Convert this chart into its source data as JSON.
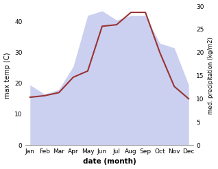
{
  "months": [
    "Jan",
    "Feb",
    "Mar",
    "Apr",
    "May",
    "Jun",
    "Jul",
    "Aug",
    "Sep",
    "Oct",
    "Nov",
    "Dec"
  ],
  "temp": [
    15.5,
    16.0,
    17.0,
    22.0,
    24.0,
    38.5,
    39.0,
    43.0,
    43.0,
    30.0,
    19.0,
    15.0
  ],
  "precip": [
    13,
    11,
    12,
    17,
    28,
    29,
    27,
    28,
    28,
    22,
    21,
    13
  ],
  "temp_color": "#993333",
  "precip_color": "#b0b8e8",
  "precip_alpha": 0.65,
  "xlabel": "date (month)",
  "ylabel_left": "max temp (C)",
  "ylabel_right": "med. precipitation (kg/m2)",
  "ylim_left": [
    0,
    45
  ],
  "ylim_right": [
    0,
    30
  ],
  "yticks_left": [
    0,
    10,
    20,
    30,
    40
  ],
  "yticks_right": [
    0,
    5,
    10,
    15,
    20,
    25,
    30
  ],
  "fig_width": 3.18,
  "fig_height": 2.47,
  "dpi": 100
}
